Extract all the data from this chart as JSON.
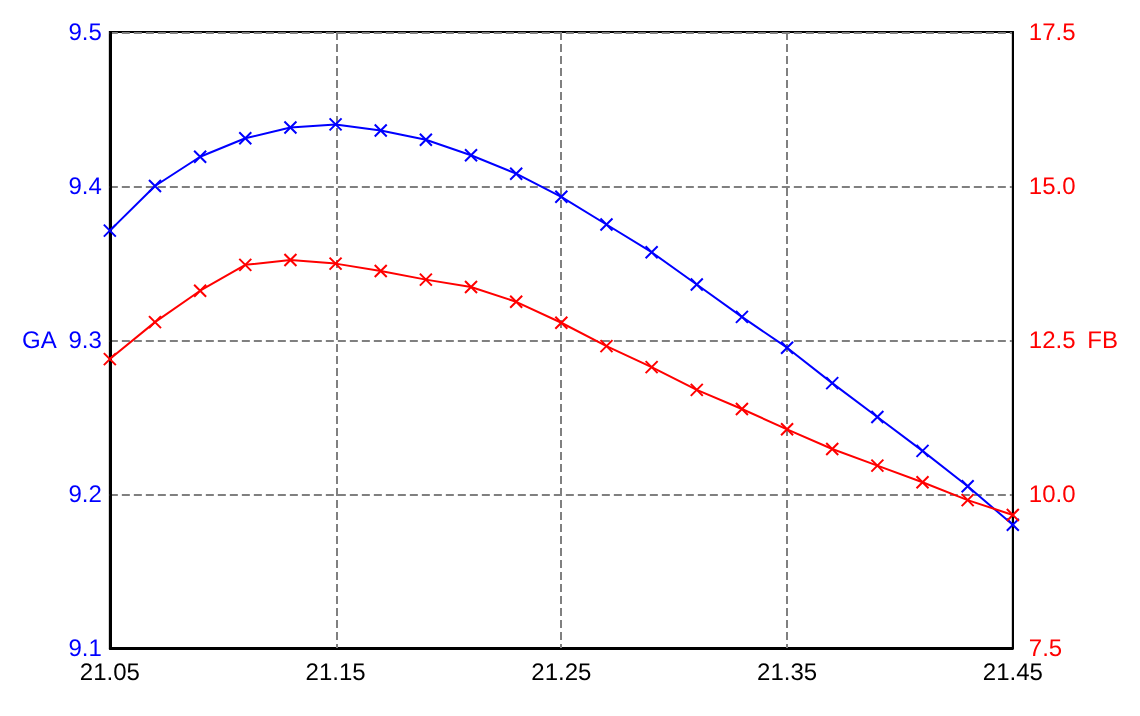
{
  "chart_data": {
    "type": "line",
    "ylabel": "GA",
    "y2label": "FB",
    "x": [
      21.05,
      21.07,
      21.09,
      21.11,
      21.13,
      21.15,
      21.17,
      21.19,
      21.21,
      21.23,
      21.25,
      21.27,
      21.29,
      21.31,
      21.33,
      21.35,
      21.37,
      21.39,
      21.41,
      21.43,
      21.45
    ],
    "series": [
      {
        "color": "#0000ff",
        "values": [
          9.371,
          9.4,
          9.419,
          9.431,
          9.438,
          9.44,
          9.436,
          9.43,
          9.42,
          9.408,
          9.393,
          9.375,
          9.357,
          9.336,
          9.315,
          9.295,
          9.272,
          9.25,
          9.228,
          9.205,
          9.18
        ]
      },
      {
        "color": "#ff0000",
        "axis": "y2",
        "values": [
          12.19,
          12.79,
          13.3,
          13.72,
          13.8,
          13.74,
          13.62,
          13.48,
          13.36,
          13.12,
          12.78,
          12.4,
          12.06,
          11.69,
          11.38,
          11.05,
          10.73,
          10.46,
          10.19,
          9.9,
          9.66
        ]
      }
    ],
    "xlim": [
      21.05,
      21.45
    ],
    "xticks": [
      21.05,
      21.15,
      21.25,
      21.35,
      21.45
    ],
    "ylim": [
      9.1,
      9.5
    ],
    "yticks": [
      9.1,
      9.2,
      9.3,
      9.4,
      9.5
    ],
    "y2lim": [
      7.5,
      17.5
    ],
    "y2ticks": [
      7.5,
      {
        "value": 10,
        "label": "10.0"
      },
      12.5,
      {
        "value": 15,
        "label": "15.0"
      },
      17.5
    ],
    "grid": true,
    "marker": "cross",
    "line_style": "solid"
  }
}
